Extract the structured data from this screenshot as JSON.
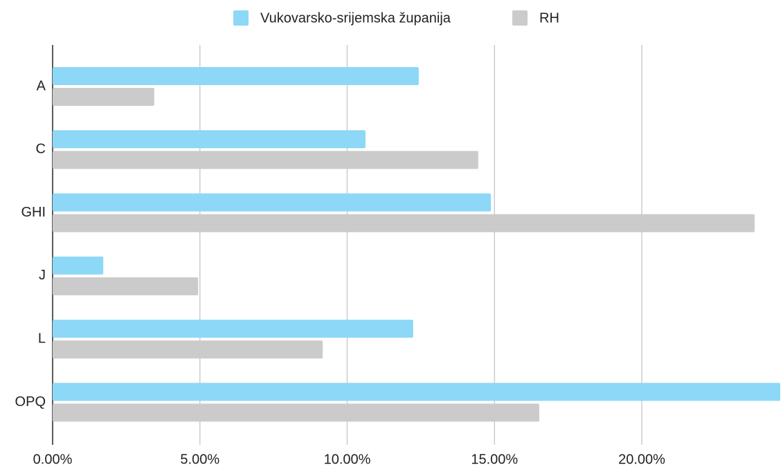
{
  "chart_data": {
    "type": "bar",
    "orientation": "horizontal",
    "categories": [
      "A",
      "C",
      "GHI",
      "J",
      "L",
      "OPQ"
    ],
    "series": [
      {
        "name": "Vukovarsko-srijemska županija",
        "color": "#8dd7f7",
        "values": [
          12.43,
          10.62,
          14.88,
          1.72,
          12.24,
          24.7
        ]
      },
      {
        "name": "RH",
        "color": "#cbcbcb",
        "values": [
          3.45,
          14.45,
          23.83,
          4.94,
          9.17,
          16.52
        ]
      }
    ],
    "xlim": [
      0,
      24.7
    ],
    "xticks": [
      {
        "value": 0,
        "label": "0.00%"
      },
      {
        "value": 5,
        "label": "5.00%"
      },
      {
        "value": 10,
        "label": "10.00%"
      },
      {
        "value": 15,
        "label": "15.00%"
      },
      {
        "value": 20,
        "label": "20.00%"
      }
    ],
    "grid": true,
    "legend": "top"
  }
}
